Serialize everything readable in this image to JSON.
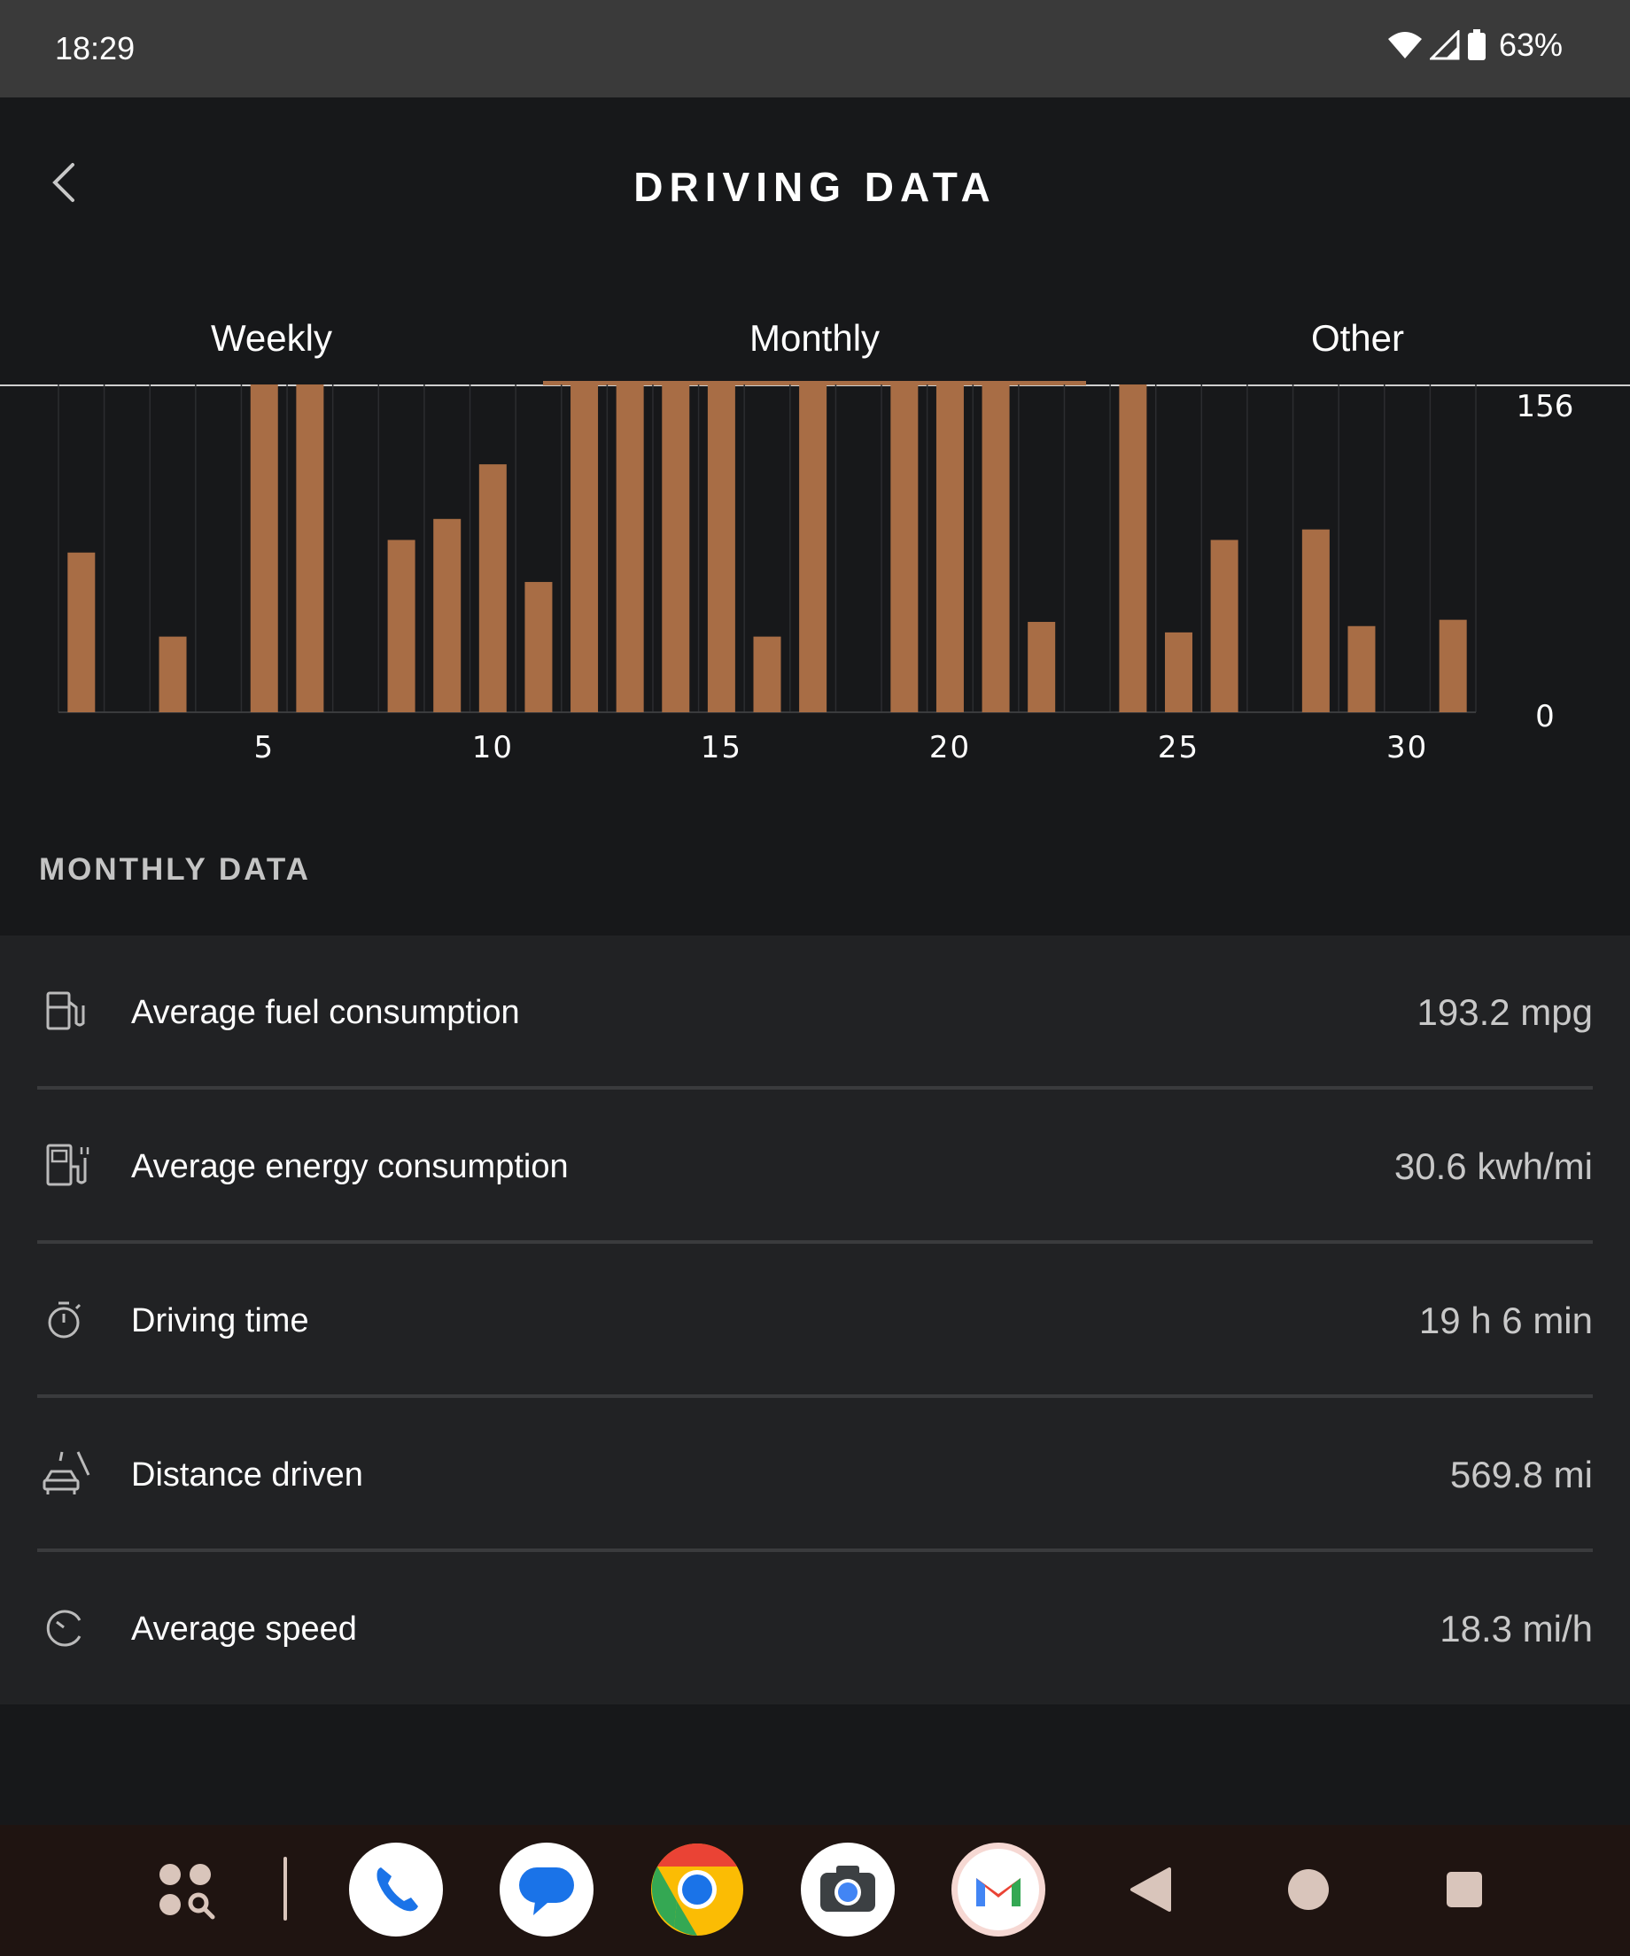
{
  "status_bar": {
    "time": "18:29",
    "battery": "63%"
  },
  "app_bar": {
    "title": "DRIVING DATA"
  },
  "tabs": [
    {
      "label": "Weekly",
      "selected": false
    },
    {
      "label": "Monthly",
      "selected": true
    },
    {
      "label": "Other",
      "selected": false
    }
  ],
  "chart_data": {
    "type": "bar",
    "categories": [
      1,
      2,
      3,
      4,
      5,
      6,
      7,
      8,
      9,
      10,
      11,
      12,
      13,
      14,
      15,
      16,
      17,
      18,
      19,
      20,
      21,
      22,
      23,
      24,
      25,
      26,
      27,
      28,
      29,
      30,
      31
    ],
    "values": [
      76,
      0,
      36,
      0,
      156,
      156,
      0,
      82,
      92,
      118,
      62,
      156,
      156,
      156,
      156,
      36,
      156,
      0,
      156,
      156,
      156,
      43,
      0,
      156,
      38,
      82,
      0,
      87,
      41,
      0,
      44
    ],
    "x_tick_labels": [
      "5",
      "10",
      "15",
      "20",
      "25",
      "30"
    ],
    "y_tick_labels": [
      "156",
      "0"
    ],
    "ylim": [
      0,
      156
    ],
    "grid": true,
    "bar_color": "#a86d45"
  },
  "section": {
    "title": "MONTHLY DATA"
  },
  "rows": [
    {
      "icon": "fuel-pump-icon",
      "label": "Average fuel consumption",
      "value": "193.2 mpg"
    },
    {
      "icon": "ev-charger-icon",
      "label": "Average energy consumption",
      "value": "30.6 kwh/mi"
    },
    {
      "icon": "stopwatch-icon",
      "label": "Driving time",
      "value": "19 h 6 min"
    },
    {
      "icon": "car-road-icon",
      "label": "Distance driven",
      "value": "569.8 mi"
    },
    {
      "icon": "speedometer-icon",
      "label": "Average speed",
      "value": "18.3 mi/h"
    }
  ],
  "colors": {
    "accent": "#a86d45",
    "background": "#17181a",
    "panel": "#212224"
  },
  "dock": {
    "apps": [
      "apps-search-icon",
      "phone-icon",
      "messages-icon",
      "chrome-icon",
      "camera-icon",
      "gmail-icon"
    ],
    "nav": [
      "nav-back-icon",
      "nav-home-icon",
      "nav-recents-icon"
    ]
  }
}
